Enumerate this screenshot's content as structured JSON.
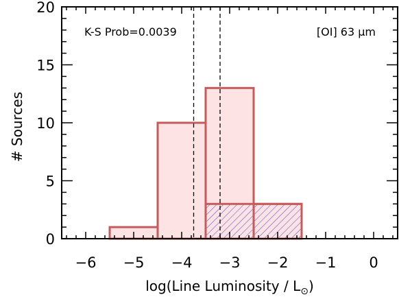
{
  "chart_data": {
    "type": "histogram",
    "xlabel": "log(Line Luminosity / L",
    "xlabel_sub": "⊙",
    "xlabel_close": ")",
    "ylabel": "# Sources",
    "xlim": [
      -6.5,
      0.5
    ],
    "ylim": [
      0,
      20
    ],
    "x_major_ticks": [
      -6,
      -5,
      -4,
      -3,
      -2,
      -1,
      0
    ],
    "x_tick_labels": [
      "−6",
      "−5",
      "−4",
      "−3",
      "−2",
      "−1",
      "0"
    ],
    "y_major_ticks": [
      0,
      5,
      10,
      15,
      20
    ],
    "y_tick_labels": [
      "0",
      "5",
      "10",
      "15",
      "20"
    ],
    "grid": false,
    "series": [
      {
        "style": "filled",
        "fill_color": "#fde3e3",
        "edge_color": "#c85a5a",
        "bins": [
          {
            "x0": -5.5,
            "x1": -4.5,
            "count": 1
          },
          {
            "x0": -4.5,
            "x1": -3.5,
            "count": 10
          },
          {
            "x0": -3.5,
            "x1": -2.5,
            "count": 13
          },
          {
            "x0": -2.5,
            "x1": -1.5,
            "count": 3
          },
          {
            "x0": -1.5,
            "x1": -0.5,
            "count": 0
          }
        ]
      },
      {
        "style": "hatched",
        "hatch_color": "#6b6bd6",
        "edge_color": "#c85a5a",
        "bins": [
          {
            "x0": -3.5,
            "x1": -2.5,
            "count": 3
          },
          {
            "x0": -2.5,
            "x1": -1.5,
            "count": 3
          }
        ]
      }
    ],
    "vlines": [
      -3.75,
      -3.2
    ],
    "annotations": {
      "ks": "K-S Prob=0.0039",
      "line_label": "[OI] 63 μm"
    }
  }
}
